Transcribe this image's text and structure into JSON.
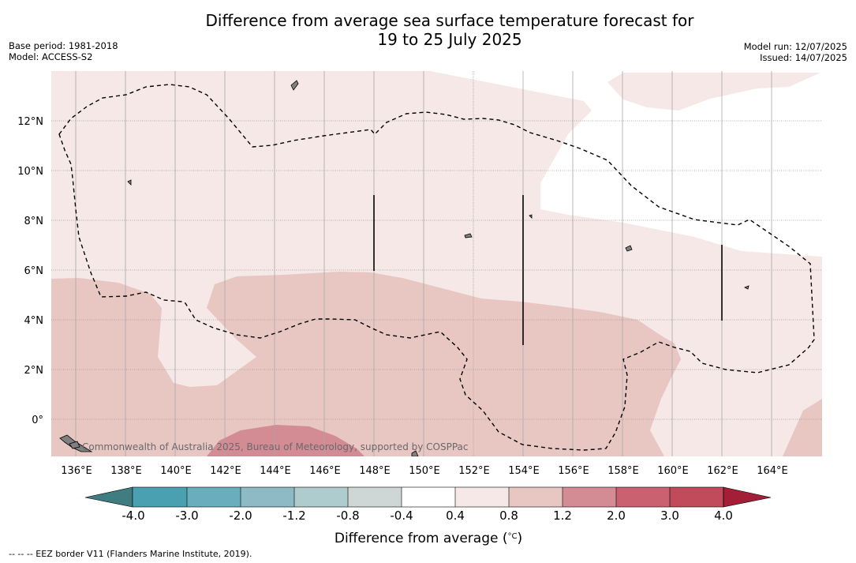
{
  "title_line1": "Difference from average sea surface temperature forecast for",
  "title_line2": "19 to 25 July 2025",
  "base_period": "Base period: 1981-2018",
  "model": "Model: ACCESS-S2",
  "model_run": "Model run: 12/07/2025",
  "issued": "Issued: 14/07/2025",
  "credit": "Commonwealth of Australia 2025, Bureau of Meteorology, supported by COSPPac",
  "footnote": "-- -- -- EEZ border V11 (Flanders Marine Institute, 2019).",
  "map": {
    "lon_labels": [
      "136°E",
      "138°E",
      "140°E",
      "142°E",
      "144°E",
      "146°E",
      "148°E",
      "150°E",
      "152°E",
      "154°E",
      "156°E",
      "158°E",
      "160°E",
      "162°E",
      "164°E"
    ],
    "lat_labels": [
      "12°N",
      "10°N",
      "8°N",
      "6°N",
      "4°N",
      "2°N",
      "0°"
    ],
    "layers": [
      {
        "range": "0.4 to 0.8",
        "color": "#f5e8e7"
      },
      {
        "range": "0.8 to 1.2",
        "color": "#e8c6c2"
      },
      {
        "range": "1.2 to 2.0",
        "color": "#d48c94"
      }
    ]
  },
  "colorbar": {
    "label": "Difference from average (°C)",
    "label_main": "Difference from average (",
    "label_unit": "°C",
    "label_close": ")",
    "ticks": [
      "-4.0",
      "-3.0",
      "-2.0",
      "-1.2",
      "-0.8",
      "-0.4",
      "0.4",
      "0.8",
      "1.2",
      "2.0",
      "3.0",
      "4.0"
    ],
    "colors": [
      "#448f95",
      "#4aa0b1",
      "#6aaebd",
      "#8dbac5",
      "#aecbcd",
      "#cfd7d6",
      "#ffffff",
      "#f5e8e7",
      "#e8c6c2",
      "#d48c94",
      "#c96170",
      "#c14a5b",
      "#a51e37"
    ],
    "under_color": "#3f7d81",
    "over_color": "#a51e37"
  }
}
